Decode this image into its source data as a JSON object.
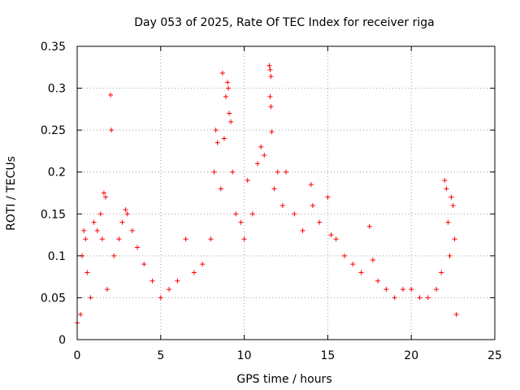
{
  "chart_data": {
    "type": "scatter",
    "title": "Day 053 of 2025, Rate Of TEC Index for receiver riga",
    "xlabel": "GPS time / hours",
    "ylabel": "ROTI / TECUs",
    "xlim": [
      0,
      25
    ],
    "ylim": [
      0,
      0.35
    ],
    "xticks": [
      0,
      5,
      10,
      15,
      20,
      25
    ],
    "xtick_labels": [
      "0",
      "5",
      "10",
      "15",
      "20",
      "25"
    ],
    "yticks": [
      0,
      0.05,
      0.1,
      0.15,
      0.2,
      0.25,
      0.3,
      0.35
    ],
    "ytick_labels": [
      "0",
      "0.05",
      "0.1",
      "0.15",
      "0.2",
      "0.25",
      "0.3",
      "0.35"
    ],
    "grid": true,
    "legend": "none",
    "marker": "plus",
    "marker_color": "#ff0000",
    "series": [
      {
        "values": [
          [
            0.0,
            0.02
          ],
          [
            0.2,
            0.03
          ],
          [
            0.3,
            0.1
          ],
          [
            0.4,
            0.13
          ],
          [
            0.5,
            0.12
          ],
          [
            0.6,
            0.08
          ],
          [
            0.8,
            0.05
          ],
          [
            1.0,
            0.14
          ],
          [
            1.2,
            0.13
          ],
          [
            1.4,
            0.15
          ],
          [
            1.5,
            0.12
          ],
          [
            1.6,
            0.175
          ],
          [
            1.7,
            0.17
          ],
          [
            1.8,
            0.06
          ],
          [
            2.0,
            0.292
          ],
          [
            2.05,
            0.25
          ],
          [
            2.2,
            0.1
          ],
          [
            2.5,
            0.12
          ],
          [
            2.7,
            0.14
          ],
          [
            2.9,
            0.155
          ],
          [
            3.0,
            0.15
          ],
          [
            3.3,
            0.13
          ],
          [
            3.6,
            0.11
          ],
          [
            4.0,
            0.09
          ],
          [
            4.5,
            0.07
          ],
          [
            5.0,
            0.05
          ],
          [
            5.5,
            0.06
          ],
          [
            6.0,
            0.07
          ],
          [
            6.5,
            0.12
          ],
          [
            7.0,
            0.08
          ],
          [
            7.5,
            0.09
          ],
          [
            8.0,
            0.12
          ],
          [
            8.2,
            0.2
          ],
          [
            8.3,
            0.25
          ],
          [
            8.4,
            0.235
          ],
          [
            8.6,
            0.18
          ],
          [
            8.7,
            0.318
          ],
          [
            8.8,
            0.24
          ],
          [
            8.9,
            0.29
          ],
          [
            9.0,
            0.307
          ],
          [
            9.05,
            0.3
          ],
          [
            9.1,
            0.27
          ],
          [
            9.2,
            0.26
          ],
          [
            9.3,
            0.2
          ],
          [
            9.5,
            0.15
          ],
          [
            9.8,
            0.14
          ],
          [
            10.0,
            0.12
          ],
          [
            10.2,
            0.19
          ],
          [
            10.5,
            0.15
          ],
          [
            10.8,
            0.21
          ],
          [
            11.0,
            0.23
          ],
          [
            11.2,
            0.22
          ],
          [
            11.5,
            0.327
          ],
          [
            11.55,
            0.322
          ],
          [
            11.6,
            0.314
          ],
          [
            11.55,
            0.29
          ],
          [
            11.6,
            0.278
          ],
          [
            11.65,
            0.248
          ],
          [
            11.8,
            0.18
          ],
          [
            12.0,
            0.2
          ],
          [
            12.3,
            0.16
          ],
          [
            12.5,
            0.2
          ],
          [
            13.0,
            0.15
          ],
          [
            13.5,
            0.13
          ],
          [
            14.0,
            0.185
          ],
          [
            14.1,
            0.16
          ],
          [
            14.5,
            0.14
          ],
          [
            15.0,
            0.17
          ],
          [
            15.2,
            0.125
          ],
          [
            15.5,
            0.12
          ],
          [
            16.0,
            0.1
          ],
          [
            16.5,
            0.09
          ],
          [
            17.0,
            0.08
          ],
          [
            17.5,
            0.135
          ],
          [
            17.7,
            0.095
          ],
          [
            18.0,
            0.07
          ],
          [
            18.5,
            0.06
          ],
          [
            19.0,
            0.05
          ],
          [
            19.5,
            0.06
          ],
          [
            20.0,
            0.06
          ],
          [
            20.5,
            0.05
          ],
          [
            21.0,
            0.05
          ],
          [
            21.5,
            0.06
          ],
          [
            21.8,
            0.08
          ],
          [
            22.0,
            0.19
          ],
          [
            22.1,
            0.18
          ],
          [
            22.2,
            0.14
          ],
          [
            22.3,
            0.1
          ],
          [
            22.4,
            0.17
          ],
          [
            22.5,
            0.16
          ],
          [
            22.6,
            0.12
          ],
          [
            22.7,
            0.03
          ]
        ]
      }
    ]
  }
}
